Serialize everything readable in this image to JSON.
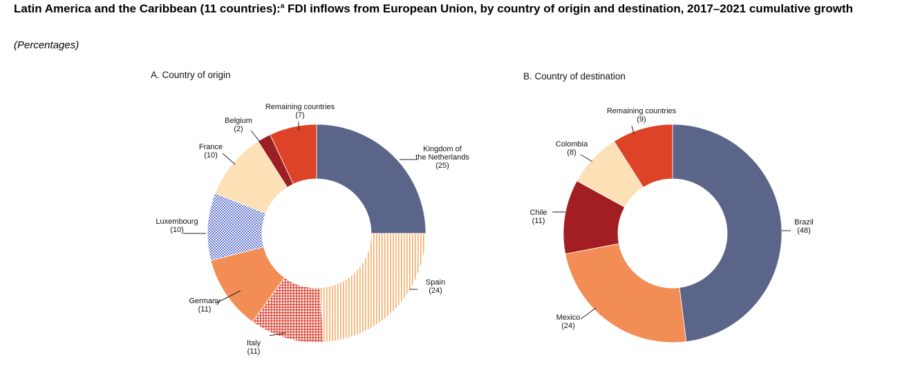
{
  "header": {
    "title_main": "Latin America and the Caribbean (11 countries):",
    "title_sup": "a",
    "title_rest": " FDI inflows from European Union, by country of origin and destination, 2017–2021 cumulative growth",
    "subtitle": "(Percentages)"
  },
  "chart_data": [
    {
      "type": "pie",
      "donut": true,
      "title": "A. Country of origin",
      "slices": [
        {
          "label": "Kingdom of the Netherlands",
          "value": 25,
          "value_label": "(25)",
          "color": "#5b6589",
          "pattern": "solid"
        },
        {
          "label": "Spain",
          "value": 24,
          "value_label": "(24)",
          "color": "#f7ab66",
          "pattern": "vertical-stripes"
        },
        {
          "label": "Italy",
          "value": 11,
          "value_label": "(11)",
          "color": "#e04a3a",
          "pattern": "grid"
        },
        {
          "label": "Germany",
          "value": 11,
          "value_label": "(11)",
          "color": "#f28d55",
          "pattern": "solid"
        },
        {
          "label": "Luxembourg",
          "value": 10,
          "value_label": "(10)",
          "color": "#5c6fcf",
          "pattern": "checker"
        },
        {
          "label": "France",
          "value": 10,
          "value_label": "(10)",
          "color": "#fde0b5",
          "pattern": "solid"
        },
        {
          "label": "Belgium",
          "value": 2,
          "value_label": "(2)",
          "color": "#9c1f22",
          "pattern": "solid"
        },
        {
          "label": "Remaining countries",
          "value": 7,
          "value_label": "(7)",
          "color": "#dc4327",
          "pattern": "solid"
        }
      ]
    },
    {
      "type": "pie",
      "donut": true,
      "title": "B. Country of destination",
      "slices": [
        {
          "label": "Brazil",
          "value": 48,
          "value_label": "(48)",
          "color": "#5b6589",
          "pattern": "solid"
        },
        {
          "label": "Mexico",
          "value": 24,
          "value_label": "(24)",
          "color": "#f28d55",
          "pattern": "solid"
        },
        {
          "label": "Chile",
          "value": 11,
          "value_label": "(11)",
          "color": "#a21e22",
          "pattern": "solid"
        },
        {
          "label": "Colombia",
          "value": 8,
          "value_label": "(8)",
          "color": "#fde0b5",
          "pattern": "solid"
        },
        {
          "label": "Remaining countries",
          "value": 9,
          "value_label": "(9)",
          "color": "#dc4327",
          "pattern": "solid"
        }
      ]
    }
  ]
}
